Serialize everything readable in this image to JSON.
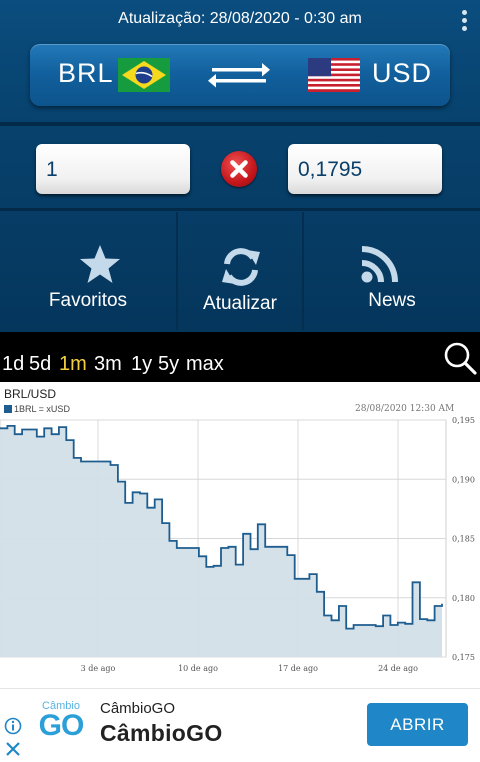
{
  "header": {
    "update_text": "Atualização: 28/08/2020 - 0:30 am",
    "menu_icon": "kebab-menu-icon"
  },
  "currency_pair": {
    "from_code": "BRL",
    "from_flag": "brazil-flag-icon",
    "to_code": "USD",
    "to_flag": "usa-flag-icon",
    "swap_icon": "swap-arrows-icon"
  },
  "converter": {
    "from_value": "1",
    "to_value": "0,1795",
    "clear_icon": "clear-x-icon"
  },
  "actions": [
    {
      "label": "Favoritos",
      "icon": "star-icon"
    },
    {
      "label": "Atualizar",
      "icon": "refresh-icon"
    },
    {
      "label": "News",
      "icon": "rss-icon"
    }
  ],
  "ranges": {
    "items": [
      "1d",
      "5d",
      "1m",
      "3m",
      "1y",
      "5y",
      "max"
    ],
    "selected": "1m",
    "search_icon": "search-icon"
  },
  "chart_data": {
    "type": "area",
    "title": "BRL/USD",
    "legend": "1BRL = xUSD",
    "timestamp": "28/08/2020 12:30 AM",
    "xticks": [
      "3 de ago",
      "10 de ago",
      "17 de ago",
      "24 de ago"
    ],
    "yticks": [
      "0,175",
      "0,180",
      "0,185",
      "0,190",
      "0,195"
    ],
    "ylim": [
      0.175,
      0.195
    ],
    "series": [
      {
        "values": [
          0.1943,
          0.1945,
          0.1938,
          0.1942,
          0.1942,
          0.1936,
          0.1943,
          0.1938,
          0.1944,
          0.1933,
          0.1918,
          0.1915,
          0.1915,
          0.1915,
          0.1915,
          0.1912,
          0.1898,
          0.188,
          0.1889,
          0.1888,
          0.1876,
          0.1883,
          0.1863,
          0.1848,
          0.1842,
          0.1842,
          0.1842,
          0.1835,
          0.1826,
          0.1827,
          0.1842,
          0.1843,
          0.1828,
          0.1854,
          0.1841,
          0.1862,
          0.1843,
          0.1843,
          0.1843,
          0.1836,
          0.1816,
          0.1816,
          0.182,
          0.1805,
          0.1785,
          0.1781,
          0.1793,
          0.1774,
          0.1777,
          0.1777,
          0.1777,
          0.1776,
          0.1785,
          0.1777,
          0.1779,
          0.1778,
          0.1813,
          0.1782,
          0.1781,
          0.1793,
          0.1795
        ]
      }
    ]
  },
  "ad": {
    "logo_text": "GO",
    "logo_caption": "Câmbio",
    "title_small": "CâmbioGO",
    "title_big": "CâmbioGO",
    "button_label": "ABRIR",
    "info_icon": "info-icon",
    "close_icon": "close-icon"
  },
  "colors": {
    "accent": "#f4d03f",
    "app_blue": "#07416c",
    "chart_line": "#1e5d8f",
    "chart_fill": "#d3dfe8"
  }
}
